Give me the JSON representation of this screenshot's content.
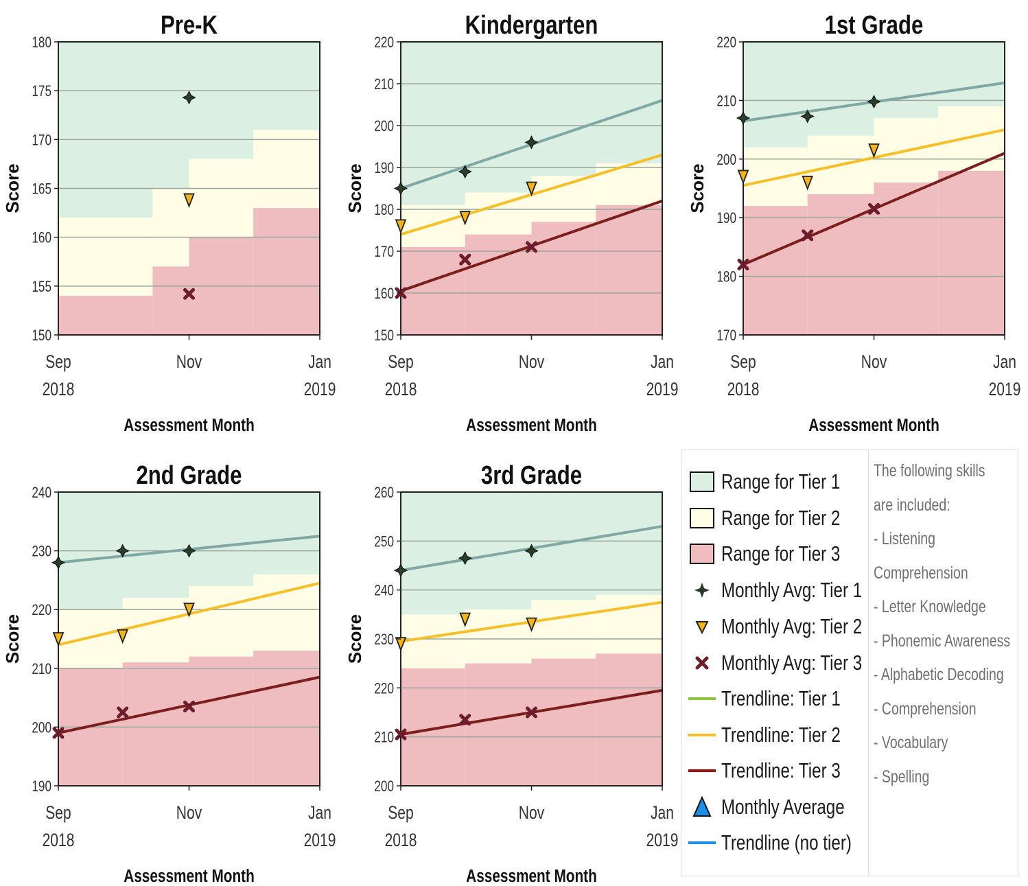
{
  "colors": {
    "tier1_range": "#dcefe3",
    "tier2_range": "#fffde6",
    "tier3_range": "#efbcbf",
    "tier1_trend": "#80a8a4",
    "tier2_trend": "#f5c02a",
    "tier3_trend": "#7b1e1e",
    "tier1_marker": "#2a3d2a",
    "tier2_marker": "#f2b51e",
    "tier3_marker": "#6b1d2b",
    "no_tier": "#1f8ee8",
    "trend_tier1_legend": "#8cc63f"
  },
  "chart_data": [
    {
      "type": "line",
      "title": "Pre-K",
      "xlabel": "Assessment Month",
      "ylabel": "Score",
      "ylim": [
        150,
        180
      ],
      "yticks": [
        150,
        155,
        160,
        165,
        170,
        175,
        180
      ],
      "xticks": [
        {
          "month": "Sep",
          "year": "2018"
        },
        {
          "month": "Nov",
          "year": ""
        },
        {
          "month": "Jan",
          "year": "2019"
        }
      ],
      "grid": true,
      "range_steps": [
        {
          "from": "2018-09",
          "to": "2018-10-15",
          "t2_low": 154,
          "t1_low": 162
        },
        {
          "from": "2018-10-15",
          "to": "2018-11-01",
          "t2_low": 157,
          "t1_low": 165
        },
        {
          "from": "2018-11-01",
          "to": "2018-12-01",
          "t2_low": 160,
          "t1_low": 168
        },
        {
          "from": "2018-12-01",
          "to": "2019-01",
          "t2_low": 163,
          "t1_low": 171
        }
      ],
      "series": [
        {
          "name": "Monthly Avg: Tier 1",
          "x": [
            "2018-11"
          ],
          "y": [
            174.3
          ]
        },
        {
          "name": "Monthly Avg: Tier 2",
          "x": [
            "2018-11"
          ],
          "y": [
            163.8
          ]
        },
        {
          "name": "Monthly Avg: Tier 3",
          "x": [
            "2018-11"
          ],
          "y": [
            154.2
          ]
        }
      ],
      "trendlines": []
    },
    {
      "type": "line",
      "title": "Kindergarten",
      "xlabel": "Assessment Month",
      "ylabel": "Score",
      "ylim": [
        150,
        220
      ],
      "yticks": [
        150,
        160,
        170,
        180,
        190,
        200,
        210,
        220
      ],
      "xticks": [
        {
          "month": "Sep",
          "year": "2018"
        },
        {
          "month": "Nov",
          "year": ""
        },
        {
          "month": "Jan",
          "year": "2019"
        }
      ],
      "grid": true,
      "range_steps": [
        {
          "from": "2018-09",
          "to": "2018-10",
          "t2_low": 171,
          "t1_low": 181
        },
        {
          "from": "2018-10",
          "to": "2018-11",
          "t2_low": 174,
          "t1_low": 184
        },
        {
          "from": "2018-11",
          "to": "2018-12",
          "t2_low": 177,
          "t1_low": 188
        },
        {
          "from": "2018-12",
          "to": "2019-01",
          "t2_low": 181,
          "t1_low": 191
        }
      ],
      "series": [
        {
          "name": "Monthly Avg: Tier 1",
          "x": [
            "2018-09",
            "2018-10",
            "2018-11"
          ],
          "y": [
            185,
            189,
            196
          ]
        },
        {
          "name": "Monthly Avg: Tier 2",
          "x": [
            "2018-09",
            "2018-10",
            "2018-11"
          ],
          "y": [
            176,
            178,
            185
          ]
        },
        {
          "name": "Monthly Avg: Tier 3",
          "x": [
            "2018-09",
            "2018-10",
            "2018-11"
          ],
          "y": [
            160,
            168,
            171
          ]
        }
      ],
      "trendlines": [
        {
          "name": "Trendline: Tier 1",
          "x": [
            "2018-09",
            "2019-01"
          ],
          "y": [
            185,
            206
          ]
        },
        {
          "name": "Trendline: Tier 2",
          "x": [
            "2018-09",
            "2019-01"
          ],
          "y": [
            174,
            193
          ]
        },
        {
          "name": "Trendline: Tier 3",
          "x": [
            "2018-09",
            "2019-01"
          ],
          "y": [
            160.5,
            182
          ]
        }
      ]
    },
    {
      "type": "line",
      "title": "1st Grade",
      "xlabel": "Assessment Month",
      "ylabel": "Score",
      "ylim": [
        170,
        220
      ],
      "yticks": [
        170,
        180,
        190,
        200,
        210,
        220
      ],
      "xticks": [
        {
          "month": "Sep",
          "year": "2018"
        },
        {
          "month": "Nov",
          "year": ""
        },
        {
          "month": "Jan",
          "year": "2019"
        }
      ],
      "grid": true,
      "range_steps": [
        {
          "from": "2018-09",
          "to": "2018-10",
          "t2_low": 192,
          "t1_low": 202
        },
        {
          "from": "2018-10",
          "to": "2018-11",
          "t2_low": 194,
          "t1_low": 204
        },
        {
          "from": "2018-11",
          "to": "2018-12",
          "t2_low": 196,
          "t1_low": 207
        },
        {
          "from": "2018-12",
          "to": "2019-01",
          "t2_low": 198,
          "t1_low": 209
        }
      ],
      "series": [
        {
          "name": "Monthly Avg: Tier 1",
          "x": [
            "2018-09",
            "2018-10",
            "2018-11"
          ],
          "y": [
            207,
            207.3,
            209.8
          ]
        },
        {
          "name": "Monthly Avg: Tier 2",
          "x": [
            "2018-09",
            "2018-10",
            "2018-11"
          ],
          "y": [
            197,
            196,
            201.5
          ]
        },
        {
          "name": "Monthly Avg: Tier 3",
          "x": [
            "2018-09",
            "2018-10",
            "2018-11"
          ],
          "y": [
            182,
            187,
            191.5
          ]
        }
      ],
      "trendlines": [
        {
          "name": "Trendline: Tier 1",
          "x": [
            "2018-09",
            "2019-01"
          ],
          "y": [
            206.5,
            213
          ]
        },
        {
          "name": "Trendline: Tier 2",
          "x": [
            "2018-09",
            "2019-01"
          ],
          "y": [
            195.5,
            205
          ]
        },
        {
          "name": "Trendline: Tier 3",
          "x": [
            "2018-09",
            "2019-01"
          ],
          "y": [
            182,
            201
          ]
        }
      ]
    },
    {
      "type": "line",
      "title": "2nd Grade",
      "xlabel": "Assessment Month",
      "ylabel": "Score",
      "ylim": [
        190,
        240
      ],
      "yticks": [
        190,
        200,
        210,
        220,
        230,
        240
      ],
      "xticks": [
        {
          "month": "Sep",
          "year": "2018"
        },
        {
          "month": "Nov",
          "year": ""
        },
        {
          "month": "Jan",
          "year": "2019"
        }
      ],
      "grid": true,
      "range_steps": [
        {
          "from": "2018-09",
          "to": "2018-10",
          "t2_low": 210,
          "t1_low": 220
        },
        {
          "from": "2018-10",
          "to": "2018-11",
          "t2_low": 211,
          "t1_low": 222
        },
        {
          "from": "2018-11",
          "to": "2018-12",
          "t2_low": 212,
          "t1_low": 224
        },
        {
          "from": "2018-12",
          "to": "2019-01",
          "t2_low": 213,
          "t1_low": 226
        }
      ],
      "series": [
        {
          "name": "Monthly Avg: Tier 1",
          "x": [
            "2018-09",
            "2018-10",
            "2018-11"
          ],
          "y": [
            228,
            230,
            230
          ]
        },
        {
          "name": "Monthly Avg: Tier 2",
          "x": [
            "2018-09",
            "2018-10",
            "2018-11"
          ],
          "y": [
            215,
            215.5,
            220
          ]
        },
        {
          "name": "Monthly Avg: Tier 3",
          "x": [
            "2018-09",
            "2018-10",
            "2018-11"
          ],
          "y": [
            199,
            202.5,
            203.5
          ]
        }
      ],
      "trendlines": [
        {
          "name": "Trendline: Tier 1",
          "x": [
            "2018-09",
            "2019-01"
          ],
          "y": [
            228,
            232.5
          ]
        },
        {
          "name": "Trendline: Tier 2",
          "x": [
            "2018-09",
            "2019-01"
          ],
          "y": [
            214,
            224.5
          ]
        },
        {
          "name": "Trendline: Tier 3",
          "x": [
            "2018-09",
            "2019-01"
          ],
          "y": [
            199,
            208.5
          ]
        }
      ]
    },
    {
      "type": "line",
      "title": "3rd Grade",
      "xlabel": "Assessment Month",
      "ylabel": "Score",
      "ylim": [
        200,
        260
      ],
      "yticks": [
        200,
        210,
        220,
        230,
        240,
        250,
        260
      ],
      "xticks": [
        {
          "month": "Sep",
          "year": "2018"
        },
        {
          "month": "Nov",
          "year": ""
        },
        {
          "month": "Jan",
          "year": "2019"
        }
      ],
      "grid": true,
      "range_steps": [
        {
          "from": "2018-09",
          "to": "2018-10",
          "t2_low": 224,
          "t1_low": 235
        },
        {
          "from": "2018-10",
          "to": "2018-11",
          "t2_low": 225,
          "t1_low": 236
        },
        {
          "from": "2018-11",
          "to": "2018-12",
          "t2_low": 226,
          "t1_low": 238
        },
        {
          "from": "2018-12",
          "to": "2019-01",
          "t2_low": 227,
          "t1_low": 239
        }
      ],
      "series": [
        {
          "name": "Monthly Avg: Tier 1",
          "x": [
            "2018-09",
            "2018-10",
            "2018-11"
          ],
          "y": [
            244,
            246.5,
            248
          ]
        },
        {
          "name": "Monthly Avg: Tier 2",
          "x": [
            "2018-09",
            "2018-10",
            "2018-11"
          ],
          "y": [
            229,
            234,
            233
          ]
        },
        {
          "name": "Monthly Avg: Tier 3",
          "x": [
            "2018-09",
            "2018-10",
            "2018-11"
          ],
          "y": [
            210.5,
            213.5,
            215
          ]
        }
      ],
      "trendlines": [
        {
          "name": "Trendline: Tier 1",
          "x": [
            "2018-09",
            "2019-01"
          ],
          "y": [
            244,
            253
          ]
        },
        {
          "name": "Trendline: Tier 2",
          "x": [
            "2018-09",
            "2019-01"
          ],
          "y": [
            229.5,
            237.5
          ]
        },
        {
          "name": "Trendline: Tier 3",
          "x": [
            "2018-09",
            "2019-01"
          ],
          "y": [
            210.5,
            219.5
          ]
        }
      ]
    }
  ],
  "legend": {
    "items": [
      {
        "label": "Range for Tier 1",
        "icon": "tier1-range-swatch"
      },
      {
        "label": "Range for Tier 2",
        "icon": "tier2-range-swatch"
      },
      {
        "label": "Range for Tier 3",
        "icon": "tier3-range-swatch"
      },
      {
        "label": "Monthly Avg: Tier 1",
        "icon": "tier1-marker-icon"
      },
      {
        "label": "Monthly Avg: Tier 2",
        "icon": "tier2-marker-icon"
      },
      {
        "label": "Monthly Avg: Tier 3",
        "icon": "tier3-marker-icon"
      },
      {
        "label": "Trendline: Tier 1",
        "icon": "tier1-trendline-icon"
      },
      {
        "label": "Trendline: Tier 2",
        "icon": "tier2-trendline-icon"
      },
      {
        "label": "Trendline: Tier 3",
        "icon": "tier3-trendline-icon"
      },
      {
        "label": "Monthly Average",
        "icon": "monthly-average-icon"
      },
      {
        "label": "Trendline (no tier)",
        "icon": "no-tier-trendline-icon"
      }
    ],
    "skills_lines": [
      "The following skills",
      "are included:",
      "- Listening",
      "Comprehension",
      "- Letter Knowledge",
      "- Phonemic Awareness",
      "- Alphabetic Decoding",
      "- Comprehension",
      "- Vocabulary",
      "- Spelling"
    ]
  }
}
